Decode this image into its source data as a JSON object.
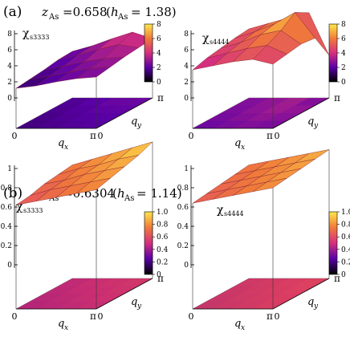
{
  "figure": {
    "rows": [
      {
        "label": "(a)",
        "param_main": "z",
        "param_main_sub": "As",
        "param_main_value": "=0.658",
        "param_extra": "h",
        "param_extra_sub": "As",
        "param_extra_value": "= 1.38)"
      },
      {
        "label": "(b)",
        "param_main": "z",
        "param_main_sub": "As",
        "param_main_value": "=0.6304",
        "param_extra": "h",
        "param_extra_sub": "As",
        "param_extra_value": "= 1.14)"
      }
    ]
  },
  "chart_data": [
    {
      "type": "heatmap",
      "panel": "a-left",
      "title": "χ",
      "title_sub": "s3333",
      "zlim": [
        0,
        8
      ],
      "z_ticks": [
        "8",
        "6",
        "4",
        "2",
        "0"
      ],
      "colorbar_ticks": [
        "8",
        "6",
        "4",
        "2",
        "0"
      ],
      "colorbar_colors": [
        "#000000",
        "#5a00a6",
        "#d52f7f",
        "#f07a3a",
        "#ffe84a"
      ],
      "x_label": "q",
      "x_label_sub": "x",
      "y_label": "q",
      "y_label_sub": "y",
      "x_ticks": [
        "0",
        "π"
      ],
      "y_ticks": [
        "0",
        "π"
      ],
      "surface": {
        "x": [
          0,
          0.25,
          0.5,
          0.75,
          1.0
        ],
        "y": [
          0,
          0.25,
          0.5,
          0.75,
          1.0
        ],
        "z": [
          [
            1.2,
            1.5,
            2.0,
            2.4,
            2.6
          ],
          [
            1.4,
            1.8,
            2.3,
            2.7,
            2.9
          ],
          [
            1.6,
            2.1,
            2.6,
            3.0,
            3.2
          ],
          [
            1.9,
            2.5,
            3.2,
            3.8,
            3.4
          ],
          [
            2.0,
            2.7,
            3.6,
            4.4,
            3.6
          ]
        ]
      },
      "floor_color": "#5a00a6"
    },
    {
      "type": "heatmap",
      "panel": "a-right",
      "title": "χ",
      "title_sub": "s4444",
      "zlim": [
        0,
        8
      ],
      "z_ticks": [
        "8",
        "6",
        "4",
        "2",
        "0"
      ],
      "colorbar_ticks": [
        "8",
        "6",
        "4",
        "2",
        "0"
      ],
      "colorbar_colors": [
        "#000000",
        "#5a00a6",
        "#d52f7f",
        "#f07a3a",
        "#ffe84a"
      ],
      "x_label": "q",
      "x_label_sub": "x",
      "y_label": "q",
      "y_label_sub": "y",
      "x_ticks": [
        "0",
        "π"
      ],
      "y_ticks": [
        "0",
        "π"
      ],
      "surface": {
        "x": [
          0,
          0.25,
          0.5,
          0.75,
          1.0
        ],
        "y": [
          0,
          0.25,
          0.5,
          0.75,
          1.0
        ],
        "z": [
          [
            3.5,
            4.0,
            4.5,
            4.8,
            4.2
          ],
          [
            4.0,
            4.6,
            5.2,
            5.6,
            4.5
          ],
          [
            4.3,
            5.0,
            6.0,
            6.5,
            4.8
          ],
          [
            4.6,
            5.4,
            6.4,
            7.8,
            4.6
          ],
          [
            4.8,
            5.5,
            6.2,
            6.8,
            1.5
          ]
        ]
      },
      "floor_color": "#5a00a6"
    },
    {
      "type": "heatmap",
      "panel": "b-left",
      "title": "χ",
      "title_sub": "s3333",
      "zlim": [
        0,
        1.0
      ],
      "z_ticks": [
        "1",
        "0.8",
        "0.6",
        "0.4",
        "0.2",
        "0"
      ],
      "colorbar_ticks": [
        "1.0",
        "0.8",
        "0.6",
        "0.4",
        "0.2",
        "0"
      ],
      "colorbar_colors": [
        "#000000",
        "#5a00a6",
        "#d52f7f",
        "#f07a3a",
        "#ffe84a"
      ],
      "x_label": "q",
      "x_label_sub": "x",
      "y_label": "q",
      "y_label_sub": "y",
      "x_ticks": [
        "0",
        "π"
      ],
      "y_ticks": [
        "0",
        "π"
      ],
      "surface": {
        "x": [
          0,
          0.25,
          0.5,
          0.75,
          1.0
        ],
        "y": [
          0,
          0.25,
          0.5,
          0.75,
          1.0
        ],
        "z": [
          [
            0.62,
            0.66,
            0.7,
            0.74,
            0.78
          ],
          [
            0.64,
            0.7,
            0.74,
            0.78,
            0.82
          ],
          [
            0.68,
            0.72,
            0.78,
            0.82,
            0.86
          ],
          [
            0.7,
            0.76,
            0.8,
            0.86,
            0.9
          ],
          [
            0.72,
            0.78,
            0.84,
            0.9,
            0.96
          ]
        ]
      },
      "floor_color": "#c4305f"
    },
    {
      "type": "heatmap",
      "panel": "b-right",
      "title": "χ",
      "title_sub": "s4444",
      "zlim": [
        0,
        1.0
      ],
      "z_ticks": [
        "1",
        "0.8",
        "0.6",
        "0.4",
        "0.2",
        "0"
      ],
      "colorbar_ticks": [
        "1.0",
        "0.8",
        "0.6",
        "0.4",
        "0.2",
        "0"
      ],
      "colorbar_colors": [
        "#000000",
        "#5a00a6",
        "#d52f7f",
        "#f07a3a",
        "#ffe84a"
      ],
      "x_label": "q",
      "x_label_sub": "x",
      "y_label": "q",
      "y_label_sub": "y",
      "x_ticks": [
        "0",
        "π"
      ],
      "y_ticks": [
        "0",
        "π"
      ],
      "surface": {
        "x": [
          0,
          0.25,
          0.5,
          0.75,
          1.0
        ],
        "y": [
          0,
          0.25,
          0.5,
          0.75,
          1.0
        ],
        "z": [
          [
            0.64,
            0.68,
            0.72,
            0.76,
            0.8
          ],
          [
            0.66,
            0.7,
            0.74,
            0.78,
            0.82
          ],
          [
            0.68,
            0.72,
            0.76,
            0.8,
            0.84
          ],
          [
            0.7,
            0.74,
            0.78,
            0.82,
            0.86
          ],
          [
            0.72,
            0.76,
            0.8,
            0.84,
            0.88
          ]
        ]
      },
      "floor_color": "#e2513f"
    }
  ]
}
